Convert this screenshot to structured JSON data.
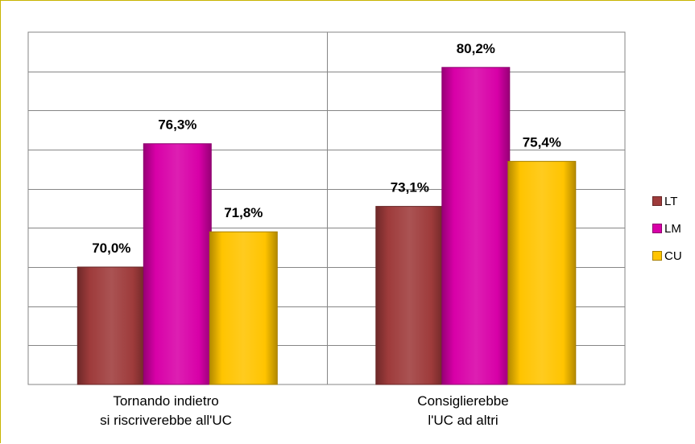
{
  "chart_data": {
    "type": "bar",
    "categories": [
      [
        "Tornando indietro",
        "si riscriverebbe all'UC"
      ],
      [
        "Consiglierebbe",
        "l'UC ad altri"
      ]
    ],
    "series": [
      {
        "name": "LT",
        "values": [
          70.0,
          73.1
        ],
        "labels": [
          "70,0%",
          "73,1%"
        ],
        "color": "#9e3b3b"
      },
      {
        "name": "LM",
        "values": [
          76.3,
          80.2
        ],
        "labels": [
          "76,3%",
          "80,2%"
        ],
        "color": "#d800a8"
      },
      {
        "name": "CU",
        "values": [
          71.8,
          75.4
        ],
        "labels": [
          "71,8%",
          "75,4%"
        ],
        "color": "#ffc400"
      }
    ],
    "ylim": [
      64,
      82
    ],
    "grid": true,
    "legend": "right"
  }
}
